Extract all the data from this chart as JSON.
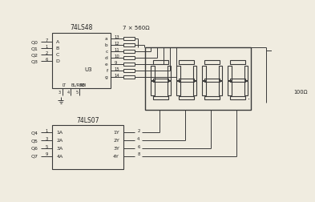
{
  "bg_color": "#f0ece0",
  "line_color": "#3a3a3a",
  "chip1_label": "74LS48",
  "chip1_sublabel": "U3",
  "chip2_label": "74LS07",
  "resistor_label": "7 × 560Ω",
  "resistor2_label": "100Ω",
  "chip1_left_q": [
    "Q0",
    "Q1",
    "Q2",
    "Q3"
  ],
  "chip1_left_pins": [
    "7",
    "1",
    "2",
    "6"
  ],
  "chip1_left_lbl": [
    "A",
    "B",
    "C",
    "D"
  ],
  "chip1_bot_pins": [
    "3",
    "4",
    "5"
  ],
  "chip1_bot_lbl": [
    "LT",
    "BL/RBO",
    "RBI"
  ],
  "chip1_right_lbl": [
    "a",
    "b",
    "c",
    "d",
    "e",
    "f",
    "g"
  ],
  "chip1_right_pins": [
    "13",
    "12",
    "11",
    "10",
    "9",
    "15",
    "14"
  ],
  "chip2_left_q": [
    "Q4",
    "Q5",
    "Q6",
    "Q7"
  ],
  "chip2_left_pins": [
    "1",
    "3",
    "5",
    "9"
  ],
  "chip2_left_lbl": [
    "1A",
    "2A",
    "3A",
    "4A"
  ],
  "chip2_right_lbl": [
    "1Y",
    "2Y",
    "3Y",
    "4Y"
  ],
  "chip2_right_pins": [
    "2",
    "4",
    "6",
    "8"
  ]
}
